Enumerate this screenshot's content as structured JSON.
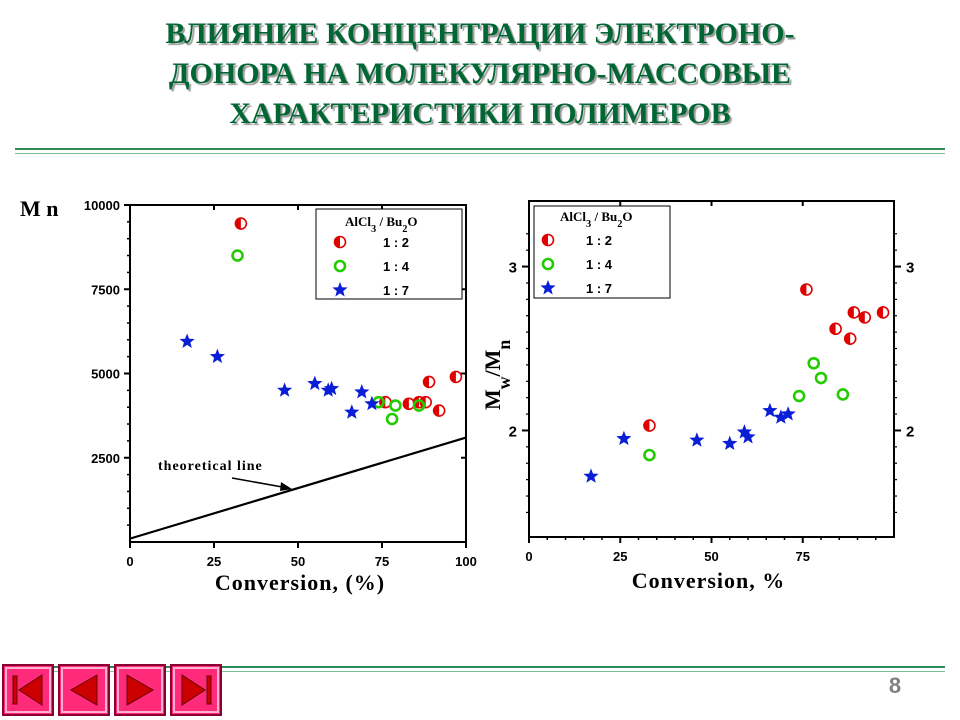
{
  "slide": {
    "title_lines": [
      "ВЛИЯНИЕ КОНЦЕНТРАЦИИ ЭЛЕКТРОНО-",
      "ДОНОРА НА МОЛЕКУЛЯРНО-МАССОВЫЕ",
      "ХАРАКТЕРИСТИКИ ПОЛИМЕРОВ"
    ],
    "page_number": "8",
    "title_color": "#006633",
    "rule_color": "#2e8b57"
  },
  "navigation": {
    "first_icon": "skip-to-first-icon",
    "prev_icon": "previous-icon",
    "next_icon": "next-icon",
    "last_icon": "skip-to-last-icon",
    "button_color": "#ff2a7a",
    "arrow_color": "#cc0000"
  },
  "series_styles": {
    "1 : 2": {
      "marker": "half-filled-circle",
      "color": "#e00000"
    },
    "1 : 4": {
      "marker": "open-circle",
      "color": "#22cc00"
    },
    "1 : 7": {
      "marker": "star",
      "color": "#0a1ed6"
    }
  },
  "chart_data": [
    {
      "type": "scatter",
      "ylabel": "M n",
      "xlabel": "Conversion, (%)",
      "xlim": [
        0,
        100
      ],
      "ylim": [
        0,
        10000
      ],
      "xticks": [
        "0",
        "25",
        "50",
        "75",
        "100"
      ],
      "yticks": [
        "2500",
        "5000",
        "7500",
        "10000"
      ],
      "legend_title": {
        "a": "AlCl",
        "a_sub": "3",
        "b": " / Bu",
        "b_sub": "2",
        "c": "O"
      },
      "legend_position": "top-right",
      "annotation": "theoretical line",
      "theoretical_line": {
        "x": [
          0,
          100
        ],
        "y": [
          100,
          3100
        ]
      },
      "series": [
        {
          "name": "1 : 2",
          "x": [
            33,
            76,
            83,
            86,
            88,
            89,
            92,
            97
          ],
          "y": [
            9450,
            4150,
            4100,
            4150,
            4150,
            4750,
            3900,
            4900
          ]
        },
        {
          "name": "1 : 4",
          "x": [
            32,
            74,
            78,
            79,
            86
          ],
          "y": [
            8500,
            4150,
            3650,
            4050,
            4050
          ]
        },
        {
          "name": "1 : 7",
          "x": [
            17,
            26,
            46,
            55,
            59,
            60,
            66,
            69,
            72
          ],
          "y": [
            5950,
            5500,
            4500,
            4700,
            4500,
            4550,
            3850,
            4450,
            4100
          ]
        }
      ]
    },
    {
      "type": "scatter",
      "ylabel": {
        "a": "M",
        "a_sub": "w",
        "b": "/M",
        "b_sub": "n"
      },
      "xlabel": "Conversion, %",
      "xlim": [
        0,
        100
      ],
      "ylim": [
        1.35,
        3.4
      ],
      "xticks": [
        "0",
        "25",
        "50",
        "75"
      ],
      "yticks": [
        "2",
        "3"
      ],
      "right_yticks": [
        "2",
        "3"
      ],
      "legend_title": {
        "a": "AlCl",
        "a_sub": "3",
        "b": " / Bu",
        "b_sub": "2",
        "c": "O"
      },
      "legend_position": "top-left",
      "series": [
        {
          "name": "1 : 2",
          "x": [
            33,
            76,
            84,
            88,
            89,
            92,
            97
          ],
          "y": [
            2.03,
            2.86,
            2.62,
            2.56,
            2.72,
            2.69,
            2.72
          ]
        },
        {
          "name": "1 : 4",
          "x": [
            33,
            74,
            78,
            80,
            86
          ],
          "y": [
            1.85,
            2.21,
            2.41,
            2.32,
            2.22
          ]
        },
        {
          "name": "1 : 7",
          "x": [
            17,
            26,
            46,
            55,
            59,
            60,
            66,
            69,
            71
          ],
          "y": [
            1.72,
            1.95,
            1.94,
            1.92,
            1.99,
            1.96,
            2.12,
            2.08,
            2.1
          ]
        }
      ]
    }
  ]
}
